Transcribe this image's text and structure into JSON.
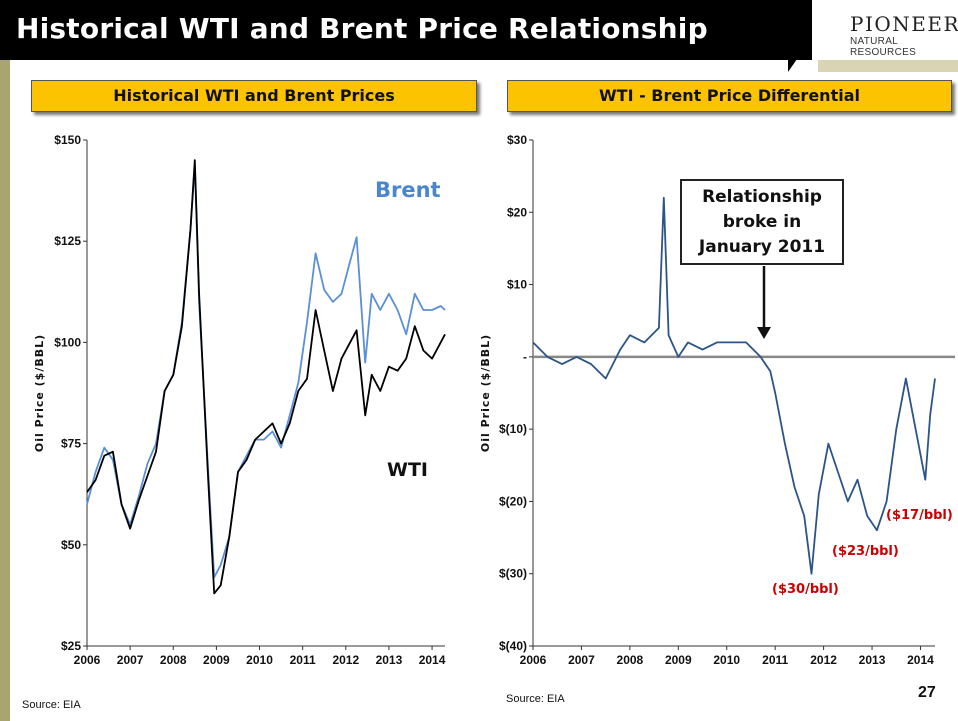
{
  "slide": {
    "title": "Historical WTI and Brent Price Relationship",
    "logo": {
      "name": "PIONEER",
      "subtitle": "NATURAL RESOURCES"
    },
    "page_number": "27",
    "colors": {
      "header_fill": "#fcc300",
      "title_bar": "#000000",
      "brent": "#5b8fd6",
      "wti": "#000000",
      "differential": "#2c5489",
      "zero_line": "#888888",
      "annotation_red": "#cc0000",
      "left_bar": "#a8a572"
    }
  },
  "left_panel": {
    "header": "Historical WTI and Brent Prices",
    "source": "Source: EIA"
  },
  "right_panel": {
    "header": "WTI - Brent Price Differential",
    "source": "Source: EIA",
    "callout": [
      "Relationship",
      "broke in",
      "January 2011"
    ]
  },
  "chart_data": [
    {
      "type": "line",
      "title": "Historical WTI and Brent Prices",
      "ylabel": "Oil Price ($/BBL)",
      "xlabel": "",
      "ylim": [
        25,
        150
      ],
      "xlim": [
        2006,
        2014.3
      ],
      "yticks": [
        "$25",
        "$50",
        "$75",
        "$100",
        "$125",
        "$150"
      ],
      "xticks": [
        "2006",
        "2007",
        "2008",
        "2009",
        "2010",
        "2011",
        "2012",
        "2013",
        "2014"
      ],
      "grid": false,
      "series": [
        {
          "name": "Brent",
          "color": "#5b8fd6",
          "x": [
            2006.0,
            2006.2,
            2006.4,
            2006.6,
            2006.8,
            2007.0,
            2007.2,
            2007.4,
            2007.6,
            2007.8,
            2008.0,
            2008.2,
            2008.4,
            2008.5,
            2008.6,
            2008.8,
            2008.95,
            2009.1,
            2009.3,
            2009.5,
            2009.7,
            2009.9,
            2010.1,
            2010.3,
            2010.5,
            2010.7,
            2010.9,
            2011.1,
            2011.3,
            2011.5,
            2011.7,
            2011.9,
            2012.1,
            2012.25,
            2012.45,
            2012.6,
            2012.8,
            2013.0,
            2013.2,
            2013.4,
            2013.6,
            2013.8,
            2014.0,
            2014.2,
            2014.3
          ],
          "y": [
            60,
            68,
            74,
            71,
            60,
            55,
            62,
            70,
            75,
            88,
            92,
            105,
            128,
            144,
            110,
            70,
            42,
            45,
            52,
            68,
            72,
            76,
            76,
            78,
            74,
            82,
            90,
            105,
            122,
            113,
            110,
            112,
            120,
            126,
            95,
            112,
            108,
            112,
            108,
            102,
            112,
            108,
            108,
            109,
            108
          ]
        },
        {
          "name": "WTI",
          "color": "#000000",
          "x": [
            2006.0,
            2006.2,
            2006.4,
            2006.6,
            2006.8,
            2007.0,
            2007.2,
            2007.4,
            2007.6,
            2007.8,
            2008.0,
            2008.2,
            2008.4,
            2008.5,
            2008.6,
            2008.8,
            2008.95,
            2009.1,
            2009.3,
            2009.5,
            2009.7,
            2009.9,
            2010.1,
            2010.3,
            2010.5,
            2010.7,
            2010.9,
            2011.1,
            2011.3,
            2011.5,
            2011.7,
            2011.9,
            2012.1,
            2012.25,
            2012.45,
            2012.6,
            2012.8,
            2013.0,
            2013.2,
            2013.4,
            2013.6,
            2013.8,
            2014.0,
            2014.2,
            2014.3
          ],
          "y": [
            63,
            66,
            72,
            73,
            60,
            54,
            61,
            67,
            73,
            88,
            92,
            104,
            128,
            145,
            112,
            68,
            38,
            40,
            52,
            68,
            71,
            76,
            78,
            80,
            75,
            80,
            88,
            91,
            108,
            98,
            88,
            96,
            100,
            103,
            82,
            92,
            88,
            94,
            93,
            96,
            104,
            98,
            96,
            100,
            102
          ]
        }
      ],
      "annotations": [
        "Brent",
        "WTI"
      ]
    },
    {
      "type": "line",
      "title": "WTI - Brent Price Differential",
      "ylabel": "Oil Price ($/BBL)",
      "xlabel": "",
      "ylim": [
        -40,
        30
      ],
      "xlim": [
        2006,
        2014.3
      ],
      "yticks": [
        "$(40)",
        "$(30)",
        "$(20)",
        "$(10)",
        "-",
        "$10",
        "$20",
        "$30"
      ],
      "xticks": [
        "2006",
        "2007",
        "2008",
        "2009",
        "2010",
        "2011",
        "2012",
        "2013",
        "2014"
      ],
      "grid": false,
      "reference_line": 0,
      "series": [
        {
          "name": "WTI - Brent",
          "color": "#2c5489",
          "x": [
            2006.0,
            2006.3,
            2006.6,
            2006.9,
            2007.2,
            2007.5,
            2007.8,
            2008.0,
            2008.3,
            2008.6,
            2008.7,
            2008.8,
            2009.0,
            2009.2,
            2009.5,
            2009.8,
            2010.1,
            2010.4,
            2010.7,
            2010.9,
            2011.0,
            2011.2,
            2011.4,
            2011.6,
            2011.75,
            2011.9,
            2012.1,
            2012.3,
            2012.5,
            2012.7,
            2012.9,
            2013.1,
            2013.3,
            2013.5,
            2013.7,
            2013.9,
            2014.1,
            2014.2,
            2014.3
          ],
          "y": [
            2,
            0,
            -1,
            0,
            -1,
            -3,
            1,
            3,
            2,
            4,
            22,
            3,
            0,
            2,
            1,
            2,
            2,
            2,
            0,
            -2,
            -5,
            -12,
            -18,
            -22,
            -30,
            -19,
            -12,
            -16,
            -20,
            -17,
            -22,
            -24,
            -20,
            -10,
            -3,
            -10,
            -17,
            -8,
            -3
          ]
        }
      ],
      "annotations": [
        "($30/bbl)",
        "($23/bbl)",
        "($17/bbl)"
      ]
    }
  ],
  "annotations_text": {
    "brent": "Brent",
    "wti": "WTI",
    "a30": "($30/bbl)",
    "a23": "($23/bbl)",
    "a17": "($17/bbl)"
  }
}
